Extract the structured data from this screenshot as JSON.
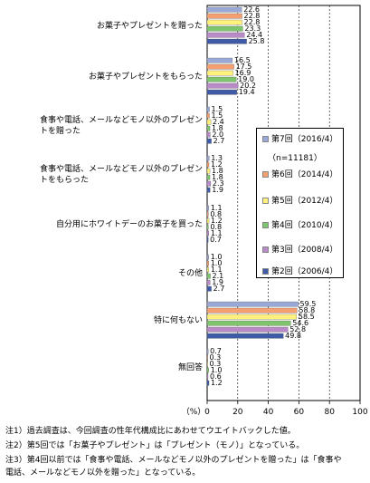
{
  "chart_data": {
    "type": "bar",
    "orientation": "horizontal",
    "categories": [
      "お菓子やプレゼントを贈った",
      "お菓子やプレゼントをもらった",
      "食事や電話、メールなどモノ以外のプレゼントを贈った",
      "食事や電話、メールなどモノ以外のプレゼントをもらった",
      "自分用にホワイトデーのお菓子を買った",
      "その他",
      "特に何もない",
      "無回答"
    ],
    "category_lines": [
      [
        "お菓子やプレゼントを贈った"
      ],
      [
        "お菓子やプレゼントをもらった"
      ],
      [
        "食事や電話、メールなどモノ以外のプレゼン",
        "トを贈った"
      ],
      [
        "食事や電話、メールなどモノ以外のプレゼン",
        "トをもらった"
      ],
      [
        "自分用にホワイトデーのお菓子を買った"
      ],
      [
        "その他"
      ],
      [
        "特に何もない"
      ],
      [
        "無回答"
      ]
    ],
    "series": [
      {
        "name": "第7回（2016/4）",
        "color": "#9aa8d8",
        "values": [
          22.6,
          16.5,
          1.5,
          1.3,
          1.1,
          1.0,
          59.5,
          0.7
        ]
      },
      {
        "name": "第6回（2014/4）",
        "color": "#f4a070",
        "values": [
          22.8,
          17.5,
          1.5,
          1.2,
          0.8,
          1.0,
          58.8,
          0.3
        ]
      },
      {
        "name": "第5回（2012/4）",
        "color": "#fff27a",
        "values": [
          22.8,
          16.9,
          2.4,
          1.8,
          1.2,
          1.1,
          58.5,
          0.3
        ]
      },
      {
        "name": "第4回（2010/4）",
        "color": "#7fc56d",
        "values": [
          23.3,
          19.0,
          1.8,
          1.8,
          0.8,
          2.1,
          54.6,
          1.0
        ]
      },
      {
        "name": "第3回（2008/4）",
        "color": "#b98ac8",
        "values": [
          24.4,
          20.2,
          2.0,
          2.3,
          1.1,
          1.9,
          52.8,
          0.6
        ]
      },
      {
        "name": "第2回（2006/4）",
        "color": "#3f5aa6",
        "values": [
          25.8,
          19.4,
          2.7,
          1.9,
          0.7,
          2.7,
          49.8,
          1.2
        ]
      }
    ],
    "sample_note": "（n=11181）",
    "xlim": [
      0,
      100
    ],
    "xticks": [
      "0",
      "20",
      "40",
      "60",
      "80",
      "100"
    ],
    "unit_label": "（%）",
    "grid": true,
    "legend_position": "right"
  },
  "notes": [
    "注1）過去調査は、今回調査の性年代構成比にあわせてウエイトバックした値。",
    "注2）第5回では「お菓子やプレゼント」は「プレゼント（モノ）」となっている。",
    "注3）第4回以前では「食事や電話、メールなどモノ以外のプレゼントを贈った」は「食事や",
    "電話、メールなどモノ以外を贈った」となっている。"
  ]
}
